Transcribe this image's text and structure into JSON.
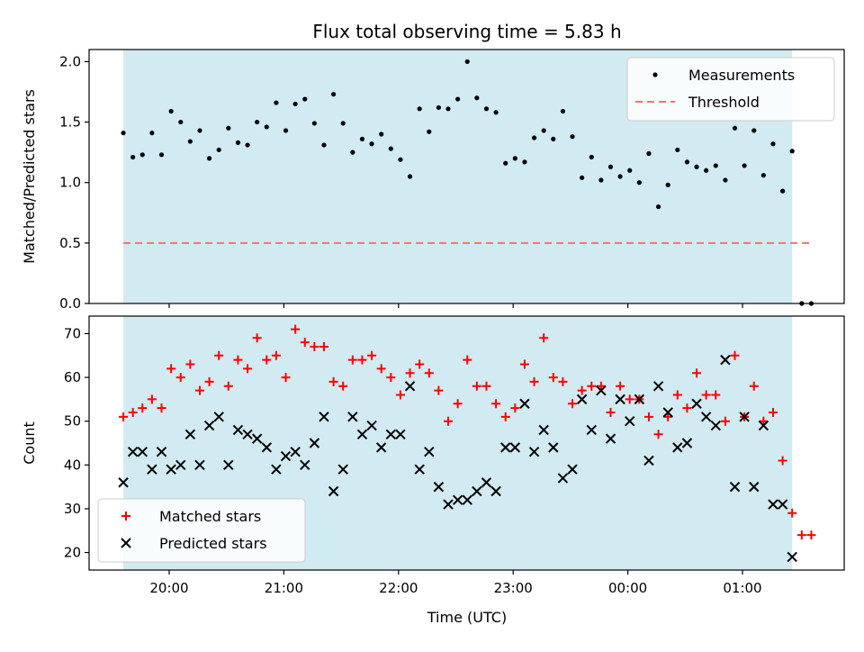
{
  "chart_data": {
    "type": "scatter",
    "title": "Flux total observing time = 5.83 h",
    "xlabel": "Time (UTC)",
    "xticks": [
      "20:00",
      "21:00",
      "22:00",
      "23:00",
      "00:00",
      "01:00"
    ],
    "shaded_span": {
      "start": "19:36",
      "end": "01:26",
      "color": "#add8e6"
    },
    "panels": [
      {
        "ylabel": "Matched/Predicted stars",
        "ylim": [
          0,
          2.1
        ],
        "yticks": [
          "0.0",
          "0.5",
          "1.0",
          "1.5",
          "2.0"
        ],
        "legend": {
          "placement": "upper right",
          "entries": [
            "Measurements",
            "Threshold"
          ]
        },
        "series": [
          {
            "name": "Measurements",
            "marker": "dot",
            "color": "#000000",
            "x": [
              "19:36",
              "19:41",
              "19:46",
              "19:51",
              "19:56",
              "20:01",
              "20:06",
              "20:11",
              "20:16",
              "20:21",
              "20:26",
              "20:31",
              "20:36",
              "20:41",
              "20:46",
              "20:51",
              "20:56",
              "21:01",
              "21:06",
              "21:11",
              "21:16",
              "21:21",
              "21:26",
              "21:31",
              "21:36",
              "21:41",
              "21:46",
              "21:51",
              "21:56",
              "22:01",
              "22:06",
              "22:11",
              "22:16",
              "22:21",
              "22:26",
              "22:31",
              "22:36",
              "22:41",
              "22:46",
              "22:51",
              "22:56",
              "23:01",
              "23:06",
              "23:11",
              "23:16",
              "23:21",
              "23:26",
              "23:31",
              "23:36",
              "23:41",
              "23:46",
              "23:51",
              "23:56",
              "00:01",
              "00:06",
              "00:11",
              "00:16",
              "00:21",
              "00:26",
              "00:31",
              "00:36",
              "00:41",
              "00:46",
              "00:51",
              "00:56",
              "01:01",
              "01:06",
              "01:11",
              "01:16",
              "01:21",
              "01:26",
              "01:31",
              "01:36"
            ],
            "y": [
              1.41,
              1.21,
              1.23,
              1.41,
              1.23,
              1.59,
              1.5,
              1.34,
              1.43,
              1.2,
              1.27,
              1.45,
              1.33,
              1.31,
              1.5,
              1.46,
              1.66,
              1.43,
              1.65,
              1.69,
              1.49,
              1.31,
              1.73,
              1.49,
              1.25,
              1.36,
              1.32,
              1.4,
              1.28,
              1.19,
              1.05,
              1.61,
              1.42,
              1.62,
              1.61,
              1.69,
              2.0,
              1.7,
              1.61,
              1.58,
              1.16,
              1.2,
              1.17,
              1.37,
              1.43,
              1.36,
              1.59,
              1.38,
              1.04,
              1.21,
              1.02,
              1.13,
              1.05,
              1.1,
              1.0,
              1.24,
              0.8,
              0.98,
              1.27,
              1.17,
              1.13,
              1.1,
              1.14,
              1.02,
              1.45,
              1.14,
              1.43,
              1.06,
              1.32,
              0.93,
              1.26,
              0,
              0
            ]
          },
          {
            "name": "Threshold",
            "style": "dashed",
            "color": "#ff6f6f",
            "y": 0.5,
            "x_range": [
              "19:36",
              "01:36"
            ]
          }
        ]
      },
      {
        "ylabel": "Count",
        "ylim": [
          16,
          74
        ],
        "yticks": [
          "20",
          "30",
          "40",
          "50",
          "60",
          "70"
        ],
        "legend": {
          "placement": "lower left",
          "entries": [
            "Matched stars",
            "Predicted stars"
          ]
        },
        "series": [
          {
            "name": "Matched stars",
            "marker": "plus",
            "color": "#ff0000",
            "x": [
              "19:36",
              "19:41",
              "19:46",
              "19:51",
              "19:56",
              "20:01",
              "20:06",
              "20:11",
              "20:16",
              "20:21",
              "20:26",
              "20:31",
              "20:36",
              "20:41",
              "20:46",
              "20:51",
              "20:56",
              "21:01",
              "21:06",
              "21:11",
              "21:16",
              "21:21",
              "21:26",
              "21:31",
              "21:36",
              "21:41",
              "21:46",
              "21:51",
              "21:56",
              "22:01",
              "22:06",
              "22:11",
              "22:16",
              "22:21",
              "22:26",
              "22:31",
              "22:36",
              "22:41",
              "22:46",
              "22:51",
              "22:56",
              "23:01",
              "23:06",
              "23:11",
              "23:16",
              "23:21",
              "23:26",
              "23:31",
              "23:36",
              "23:41",
              "23:46",
              "23:51",
              "23:56",
              "00:01",
              "00:06",
              "00:11",
              "00:16",
              "00:21",
              "00:26",
              "00:31",
              "00:36",
              "00:41",
              "00:46",
              "00:51",
              "00:56",
              "01:01",
              "01:06",
              "01:11",
              "01:16",
              "01:21",
              "01:26",
              "01:31",
              "01:36"
            ],
            "y": [
              51,
              52,
              53,
              55,
              53,
              62,
              60,
              63,
              57,
              59,
              65,
              58,
              64,
              62,
              69,
              64,
              65,
              60,
              71,
              68,
              67,
              67,
              59,
              58,
              64,
              64,
              65,
              62,
              60,
              56,
              61,
              63,
              61,
              57,
              50,
              54,
              64,
              58,
              58,
              54,
              51,
              53,
              63,
              59,
              69,
              60,
              59,
              54,
              57,
              58,
              58,
              52,
              58,
              55,
              55,
              51,
              47,
              51,
              56,
              53,
              61,
              56,
              56,
              50,
              65,
              51,
              58,
              50,
              52,
              41,
              29,
              24,
              24
            ]
          },
          {
            "name": "Predicted stars",
            "marker": "x",
            "color": "#000000",
            "x": [
              "19:36",
              "19:41",
              "19:46",
              "19:51",
              "19:56",
              "20:01",
              "20:06",
              "20:11",
              "20:16",
              "20:21",
              "20:26",
              "20:31",
              "20:36",
              "20:41",
              "20:46",
              "20:51",
              "20:56",
              "21:01",
              "21:06",
              "21:11",
              "21:16",
              "21:21",
              "21:26",
              "21:31",
              "21:36",
              "21:41",
              "21:46",
              "21:51",
              "21:56",
              "22:01",
              "22:06",
              "22:11",
              "22:16",
              "22:21",
              "22:26",
              "22:31",
              "22:36",
              "22:41",
              "22:46",
              "22:51",
              "22:56",
              "23:01",
              "23:06",
              "23:11",
              "23:16",
              "23:21",
              "23:26",
              "23:31",
              "23:36",
              "23:41",
              "23:46",
              "23:51",
              "23:56",
              "00:01",
              "00:06",
              "00:11",
              "00:16",
              "00:21",
              "00:26",
              "00:31",
              "00:36",
              "00:41",
              "00:46",
              "00:51",
              "00:56",
              "01:01",
              "01:06",
              "01:11",
              "01:16",
              "01:21",
              "01:26"
            ],
            "y": [
              36,
              43,
              43,
              39,
              43,
              39,
              40,
              47,
              40,
              49,
              51,
              40,
              48,
              47,
              46,
              44,
              39,
              42,
              43,
              40,
              45,
              51,
              34,
              39,
              51,
              47,
              49,
              44,
              47,
              47,
              58,
              39,
              43,
              35,
              31,
              32,
              32,
              34,
              36,
              34,
              44,
              44,
              54,
              43,
              48,
              44,
              37,
              39,
              55,
              48,
              57,
              46,
              55,
              50,
              55,
              41,
              58,
              52,
              44,
              45,
              54,
              51,
              49,
              64,
              35,
              51,
              35,
              49,
              31,
              31,
              19
            ]
          }
        ]
      }
    ]
  }
}
